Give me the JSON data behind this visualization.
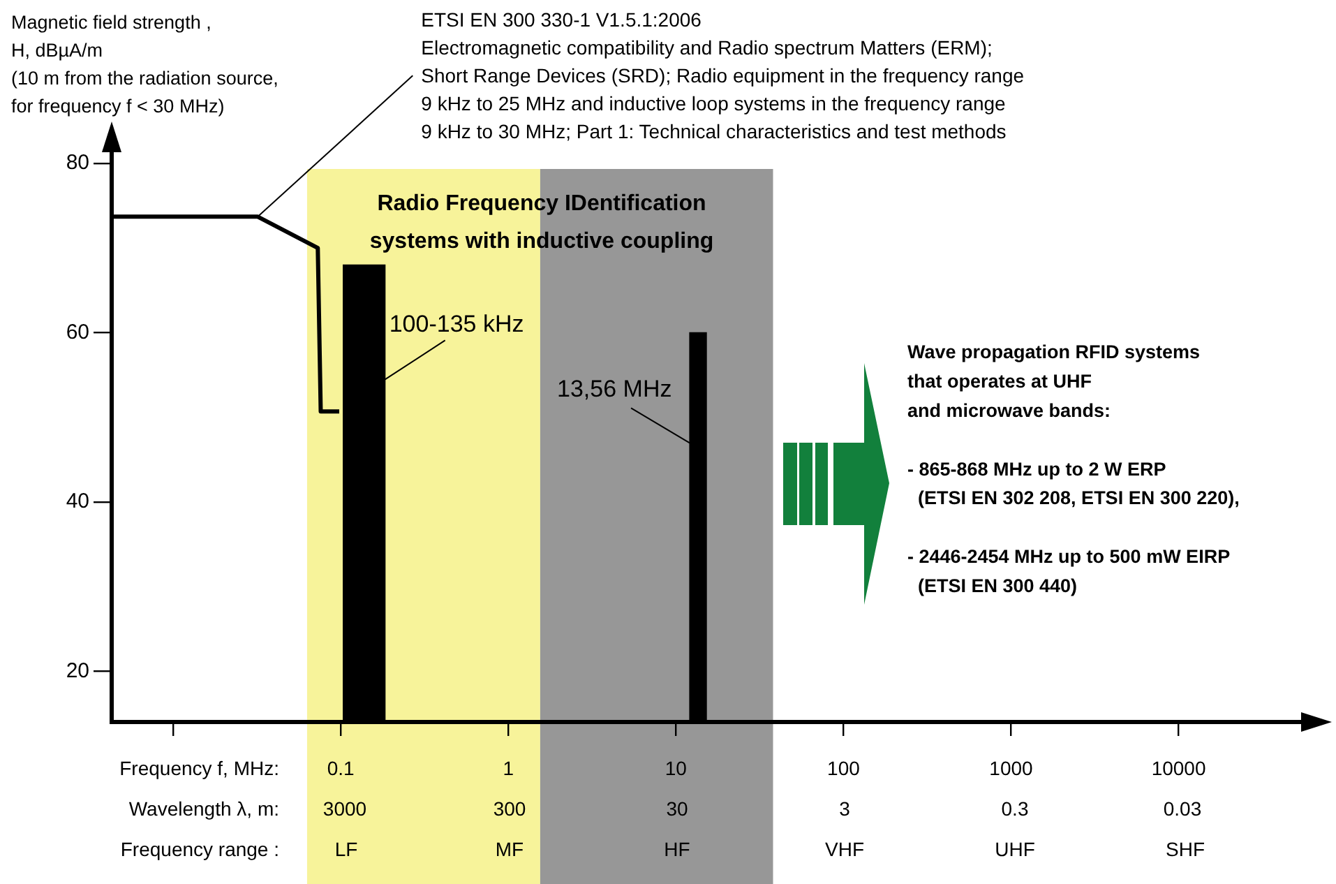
{
  "chart_data": {
    "type": "line",
    "ylabel": "Magnetic field strength ,\nH, dBµA/m\n(10 m from the radiation source,\nfor frequency f < 30 MHz)",
    "xlabel": "Frequency f, MHz:",
    "log": "x",
    "xlim": [
      0.0043,
      69000
    ],
    "xticks": [
      {
        "value": 0.01,
        "label": null
      },
      0.1,
      1,
      10,
      100,
      1000,
      10000
    ],
    "ylim": [
      14,
      80
    ],
    "yticks": [
      20,
      40,
      60,
      80
    ],
    "series": [
      {
        "color": "#000000",
        "x": [
          0.0043,
          0.032,
          0.073,
          0.076,
          0.098
        ],
        "values": [
          73.7,
          73.7,
          70,
          50.7,
          50.7
        ]
      },
      {
        "type": "bar",
        "color": "#000000",
        "x": [
          0.138,
          13.56
        ],
        "values": [
          68,
          60
        ]
      }
    ],
    "bands": [
      {
        "axis": "x",
        "from": 0.063,
        "to": 1.55,
        "color": "#f7f39a"
      },
      {
        "axis": "x",
        "from": 1.55,
        "to": 38,
        "color": "#979797"
      }
    ],
    "annotations": [
      {
        "text": "ETSI EN 300 330-1 V1.5.1:2006\nElectromagnetic compatibility and Radio spectrum Matters (ERM);\nShort Range Devices (SRD); Radio equipment in the frequency range\n9 kHz to 25 MHz and inductive loop systems in the frequency range\n9 kHz to 30 MHz; Part 1: Technical characteristics and test methods",
        "x": 0.032,
        "y": 73.7
      },
      {
        "text": "100-135 kHz",
        "x": 0.138,
        "y": 68
      },
      {
        "text": "13,56 MHz",
        "x": 13.56,
        "y": 60
      },
      "Radio Frequency IDentification\nsystems with inductive coupling",
      "Wave propagation RFID systems\nthat operates at UHF\nand microwave bands:\n\n- 865-868 MHz up to 2 W ERP\n  (ETSI EN 302 208, ETSI EN 300 220),\n\n- 2446-2454 MHz up to 500 mW EIRP\n  (ETSI EN 300 440)",
      "Wavelength λ, m:",
      "3000",
      "300",
      "30",
      "3",
      "0.3",
      "0.03",
      "Frequency range :",
      "LF",
      "MF",
      "HF",
      "VHF",
      "UHF",
      "SHF"
    ],
    "legend": false
  }
}
